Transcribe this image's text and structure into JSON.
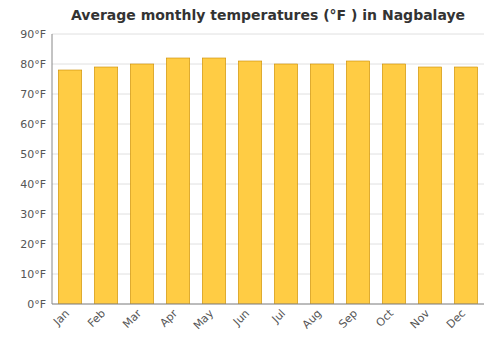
{
  "chart_data": {
    "type": "bar",
    "title": "Average monthly temperatures (°F ) in Nagbalaye",
    "categories": [
      "Jan",
      "Feb",
      "Mar",
      "Apr",
      "May",
      "Jun",
      "Jul",
      "Aug",
      "Sep",
      "Oct",
      "Nov",
      "Dec"
    ],
    "values": [
      78,
      79,
      80,
      82,
      82,
      81,
      80,
      80,
      81,
      80,
      79,
      79
    ],
    "color": "#FFCC44",
    "ylim": [
      0,
      90
    ],
    "yticks": [
      {
        "value": 0,
        "label": "0°F"
      },
      {
        "value": 10,
        "label": "10°F"
      },
      {
        "value": 20,
        "label": "20°F"
      },
      {
        "value": 30,
        "label": "30°F"
      },
      {
        "value": 40,
        "label": "40°F"
      },
      {
        "value": 50,
        "label": "50°F"
      },
      {
        "value": 60,
        "label": "60°F"
      },
      {
        "value": 70,
        "label": "70°F"
      },
      {
        "value": 80,
        "label": "80°F"
      },
      {
        "value": 90,
        "label": "90°F"
      }
    ],
    "grid": true
  }
}
